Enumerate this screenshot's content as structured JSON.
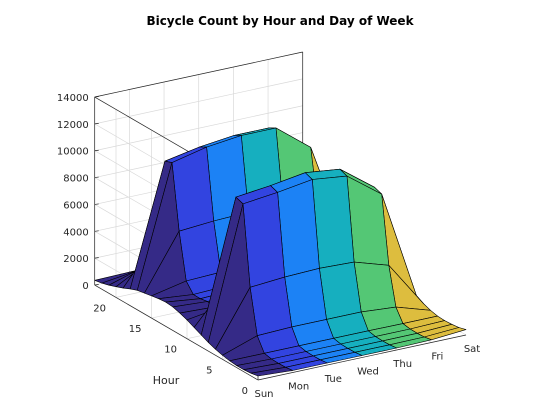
{
  "chart_data": {
    "type": "surface",
    "title": "Bicycle Count by Hour and Day of Week",
    "xlabel": "",
    "ylabel": "Hour",
    "zlabel": "",
    "x_categories": [
      "Sun",
      "Mon",
      "Tue",
      "Wed",
      "Thu",
      "Fri",
      "Sat"
    ],
    "hours": [
      0,
      1,
      2,
      3,
      4,
      5,
      6,
      7,
      8,
      9,
      10,
      11,
      12,
      13,
      14,
      15,
      16,
      17,
      18,
      19,
      20,
      21,
      22,
      23
    ],
    "hour_ticks": [
      0,
      5,
      10,
      15,
      20
    ],
    "zlim": [
      0,
      14000
    ],
    "z_ticks": [
      0,
      2000,
      4000,
      6000,
      8000,
      10000,
      12000,
      14000
    ],
    "z_tick_labels": [
      "0",
      "2000",
      "4000",
      "6000",
      "8000",
      "10000",
      "12000",
      "14000"
    ],
    "grid": true,
    "colormap": "parula",
    "series": [
      {
        "values": [
          300,
          200,
          150,
          150,
          200,
          300,
          450,
          650,
          900,
          1150,
          1400,
          1600,
          1750,
          1800,
          1750,
          1650,
          1550,
          1450,
          1250,
          1000,
          800,
          600,
          450,
          350
        ]
      },
      {
        "values": [
          150,
          80,
          60,
          80,
          200,
          1200,
          4500,
          10400,
          10600,
          4000,
          1800,
          1500,
          1600,
          1500,
          1500,
          2200,
          5600,
          10400,
          10200,
          4200,
          2200,
          1400,
          800,
          400
        ]
      },
      {
        "values": [
          150,
          80,
          60,
          80,
          200,
          1300,
          4700,
          10700,
          10900,
          4100,
          1900,
          1600,
          1700,
          1600,
          1600,
          2300,
          5800,
          11000,
          10700,
          4400,
          2300,
          1500,
          800,
          400
        ]
      },
      {
        "values": [
          150,
          80,
          60,
          80,
          200,
          1300,
          4800,
          11100,
          11300,
          4200,
          1900,
          1600,
          1700,
          1600,
          1600,
          2300,
          5900,
          11300,
          11000,
          4500,
          2400,
          1500,
          800,
          400
        ]
      },
      {
        "values": [
          150,
          80,
          60,
          80,
          200,
          1300,
          4700,
          10800,
          11000,
          4100,
          1900,
          1600,
          1700,
          1600,
          1600,
          2300,
          5800,
          11300,
          11000,
          4400,
          2400,
          1500,
          900,
          450
        ]
      },
      {
        "values": [
          200,
          100,
          70,
          80,
          180,
          1100,
          3900,
          8900,
          9100,
          3700,
          1900,
          1700,
          1800,
          1800,
          1800,
          2400,
          5200,
          9300,
          9000,
          3900,
          2200,
          1500,
          1000,
          600
        ]
      },
      {
        "values": [
          400,
          250,
          180,
          150,
          180,
          300,
          500,
          800,
          1200,
          1700,
          2200,
          2500,
          2700,
          2800,
          2700,
          2500,
          2200,
          1900,
          1500,
          1200,
          900,
          700,
          550,
          450
        ]
      }
    ]
  }
}
